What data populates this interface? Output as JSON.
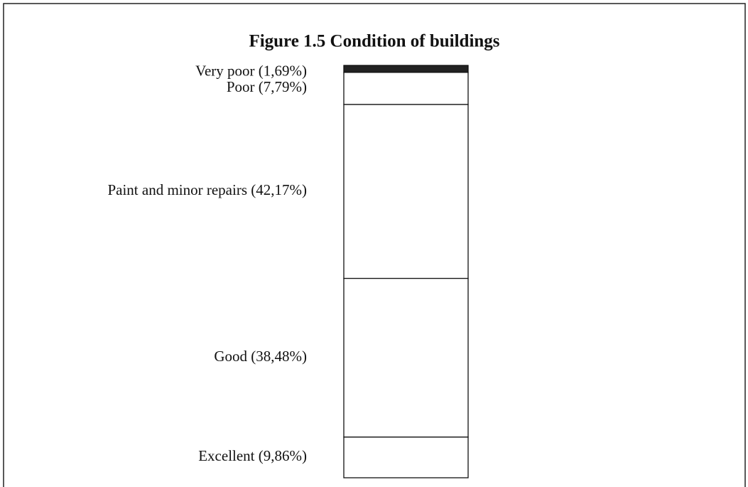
{
  "chart_data": {
    "type": "stacked-bar",
    "title": "Figure 1.5 Condition of buildings",
    "categories": [
      "Very poor (1,69%)",
      "Poor (7,79%)",
      "Paint and minor repairs (42,17%)",
      "Good (38,48%)",
      "Excellent (9,86%)"
    ],
    "values": [
      1.69,
      7.79,
      42.17,
      38.48,
      9.86
    ],
    "colors": [
      "#222222",
      "#ffffff",
      "#ffffff",
      "#ffffff",
      "#ffffff"
    ]
  }
}
